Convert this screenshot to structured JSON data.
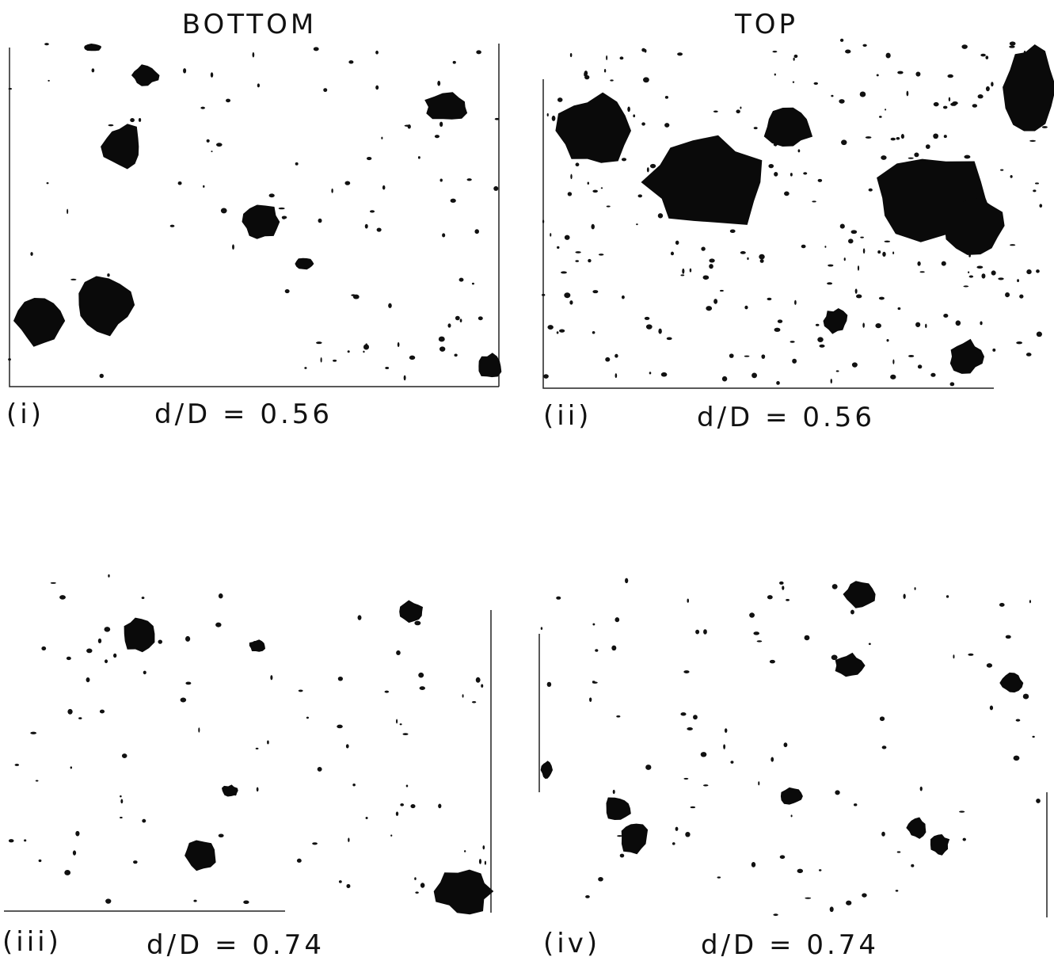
{
  "columns": {
    "left": "BOTTOM",
    "right": "TOP"
  },
  "panels": [
    {
      "label": "(i)",
      "caption": "d/D = 0.56"
    },
    {
      "label": "(ii)",
      "caption": "d/D = 0.56"
    },
    {
      "label": "(iii)",
      "caption": "d/D = 0.74"
    },
    {
      "label": "(iv)",
      "caption": "d/D = 0.74"
    }
  ]
}
